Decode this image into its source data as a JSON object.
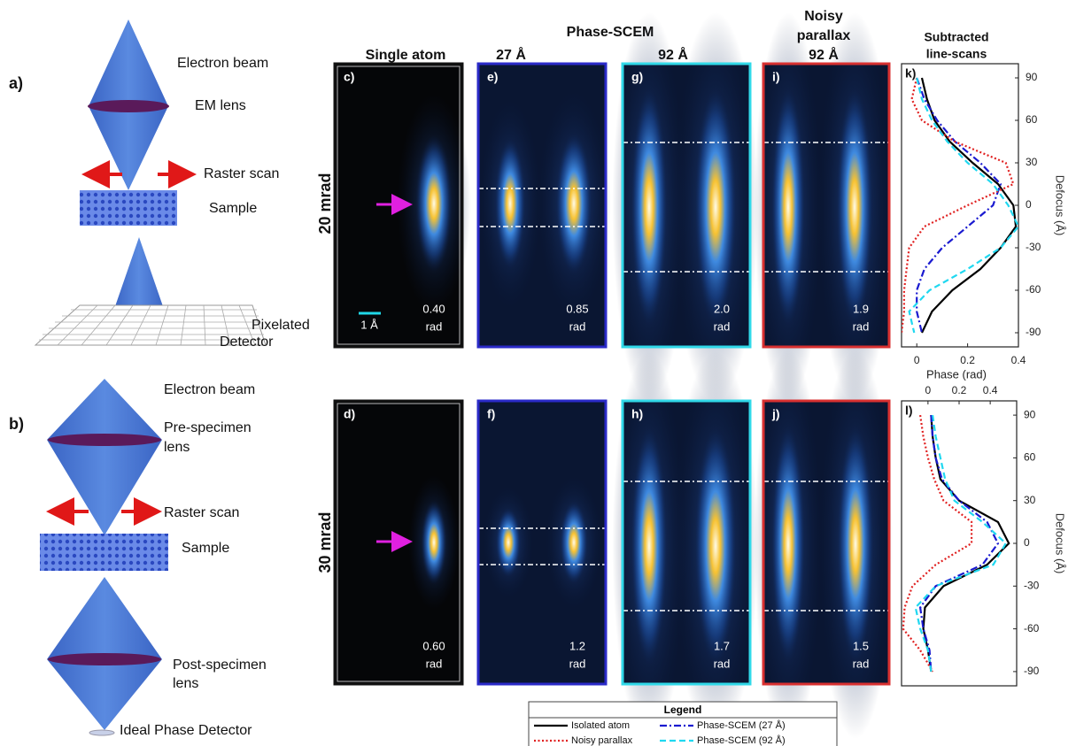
{
  "schematic_a": {
    "label": "a)",
    "texts": [
      "Electron beam",
      "EM lens",
      "Raster scan",
      "Sample",
      "Pixelated",
      "Detector"
    ]
  },
  "schematic_b": {
    "label": "b)",
    "texts": [
      "Electron beam",
      "Pre-specimen",
      "lens",
      "Raster scan",
      "Sample",
      "Post-specimen",
      "lens",
      "Ideal Phase Detector"
    ]
  },
  "headers": {
    "group": "Phase-SCEM",
    "single_atom": "Single atom",
    "scem_27": "27 Å",
    "scem_92": "92 Å",
    "noisy_1": "Noisy",
    "noisy_2": "parallax",
    "noisy_92": "92 Å",
    "subtracted_1": "Subtracted",
    "subtracted_2": "line-scans"
  },
  "rows": [
    "20 mrad",
    "30 mrad"
  ],
  "scale_bar": "1 Å",
  "panels": [
    [
      {
        "label": "c)",
        "value": "0.40",
        "unit": "rad"
      },
      {
        "label": "e)",
        "value": "0.85",
        "unit": "rad"
      },
      {
        "label": "g)",
        "value": "2.0",
        "unit": "rad"
      },
      {
        "label": "i)",
        "value": "1.9",
        "unit": "rad"
      }
    ],
    [
      {
        "label": "d)",
        "value": "0.60",
        "unit": "rad"
      },
      {
        "label": "f)",
        "value": "1.2",
        "unit": "rad"
      },
      {
        "label": "h)",
        "value": "1.7",
        "unit": "rad"
      },
      {
        "label": "j)",
        "value": "1.5",
        "unit": "rad"
      }
    ]
  ],
  "legend_title": "Legend",
  "chart_data": [
    {
      "type": "line",
      "label": "k)",
      "xlabel": "Phase (rad)",
      "ylabel": "Defocus (Å)",
      "xlim": [
        -0.06,
        0.4
      ],
      "xticks": [
        0,
        0.2,
        0.4
      ],
      "ylim": [
        -100,
        100
      ],
      "yticks": [
        90,
        60,
        30,
        0,
        -30,
        -60,
        -90
      ],
      "y": [
        90,
        75,
        60,
        45,
        30,
        15,
        0,
        -15,
        -30,
        -45,
        -60,
        -75,
        -90
      ],
      "series": [
        {
          "name": "Isolated atom",
          "color": "#000000",
          "dash": "solid",
          "values": [
            0.02,
            0.04,
            0.07,
            0.13,
            0.22,
            0.32,
            0.38,
            0.39,
            0.33,
            0.25,
            0.14,
            0.06,
            0.02
          ]
        },
        {
          "name": "Phase-SCEM (27 Å)",
          "color": "#1a1ad0",
          "dash": "dashdot",
          "values": [
            0.0,
            0.03,
            0.08,
            0.15,
            0.25,
            0.33,
            0.3,
            0.2,
            0.1,
            0.03,
            0.0,
            0.0,
            0.02
          ]
        },
        {
          "name": "Noisy parallax",
          "color": "#e02020",
          "dash": "dotted",
          "values": [
            0.0,
            -0.02,
            0.02,
            0.15,
            0.35,
            0.38,
            0.2,
            0.03,
            -0.03,
            -0.04,
            -0.05,
            -0.05,
            -0.06
          ]
        },
        {
          "name": "Phase-SCEM (92 Å)",
          "color": "#20d8f0",
          "dash": "dashed",
          "values": [
            0.0,
            0.02,
            0.06,
            0.12,
            0.2,
            0.3,
            0.36,
            0.4,
            0.33,
            0.2,
            0.05,
            -0.03,
            -0.01
          ]
        }
      ]
    },
    {
      "type": "line",
      "label": "l)",
      "ylabel": "Defocus (Å)",
      "xlim": [
        -0.17,
        0.57
      ],
      "xticks": [
        0,
        0.2,
        0.4
      ],
      "ylim": [
        -100,
        100
      ],
      "yticks": [
        90,
        60,
        30,
        0,
        -30,
        -60,
        -90
      ],
      "y": [
        90,
        75,
        60,
        45,
        30,
        15,
        0,
        -15,
        -30,
        -45,
        -60,
        -75,
        -90
      ],
      "series": [
        {
          "name": "Isolated atom",
          "color": "#000000",
          "dash": "solid",
          "values": [
            0.02,
            0.03,
            0.05,
            0.08,
            0.2,
            0.45,
            0.52,
            0.38,
            0.1,
            -0.02,
            -0.03,
            0.0,
            0.02
          ]
        },
        {
          "name": "Phase-SCEM (27 Å)",
          "color": "#1a1ad0",
          "dash": "dashdot",
          "values": [
            0.02,
            0.03,
            0.05,
            0.09,
            0.2,
            0.38,
            0.45,
            0.35,
            0.05,
            -0.05,
            -0.03,
            0.01,
            0.02
          ]
        },
        {
          "name": "Noisy parallax",
          "color": "#e02020",
          "dash": "dotted",
          "values": [
            -0.05,
            -0.03,
            0.0,
            0.04,
            0.1,
            0.28,
            0.28,
            0.05,
            -0.1,
            -0.15,
            -0.16,
            -0.05,
            0.03
          ]
        },
        {
          "name": "Phase-SCEM (92 Å)",
          "color": "#20d8f0",
          "dash": "dashed",
          "values": [
            0.03,
            0.05,
            0.08,
            0.11,
            0.17,
            0.35,
            0.5,
            0.42,
            0.05,
            -0.08,
            -0.05,
            0.0,
            0.02
          ]
        }
      ]
    }
  ]
}
